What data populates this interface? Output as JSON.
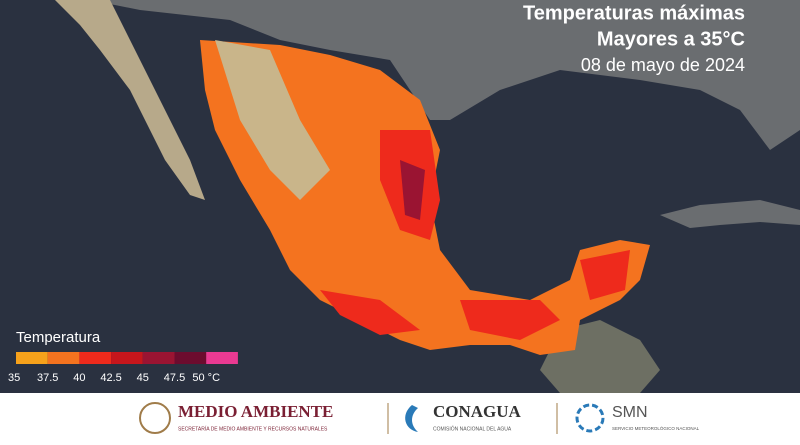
{
  "header": {
    "title": "Temperaturas máximas",
    "subtitle": "Mayores a 35°C",
    "date": "08 de mayo de 2024"
  },
  "legend": {
    "title": "Temperatura",
    "colors": [
      "#f7a21b",
      "#f4731f",
      "#ee2a1c",
      "#c6161c",
      "#9a1432",
      "#6c0c2e",
      "#ea3a92"
    ],
    "labels": [
      "35",
      "37.5",
      "40",
      "42.5",
      "45",
      "47.5",
      "50 °C"
    ]
  },
  "footer": {
    "logos": [
      {
        "name": "MEDIO AMBIENTE",
        "caption": "SECRETARÍA DE MEDIO AMBIENTE Y RECURSOS NATURALES"
      },
      {
        "name": "CONAGUA",
        "caption": "COMISIÓN NACIONAL DEL AGUA"
      },
      {
        "name": "SMN",
        "caption": "SERVICIO METEOROLÓGICO NACIONAL"
      }
    ]
  }
}
